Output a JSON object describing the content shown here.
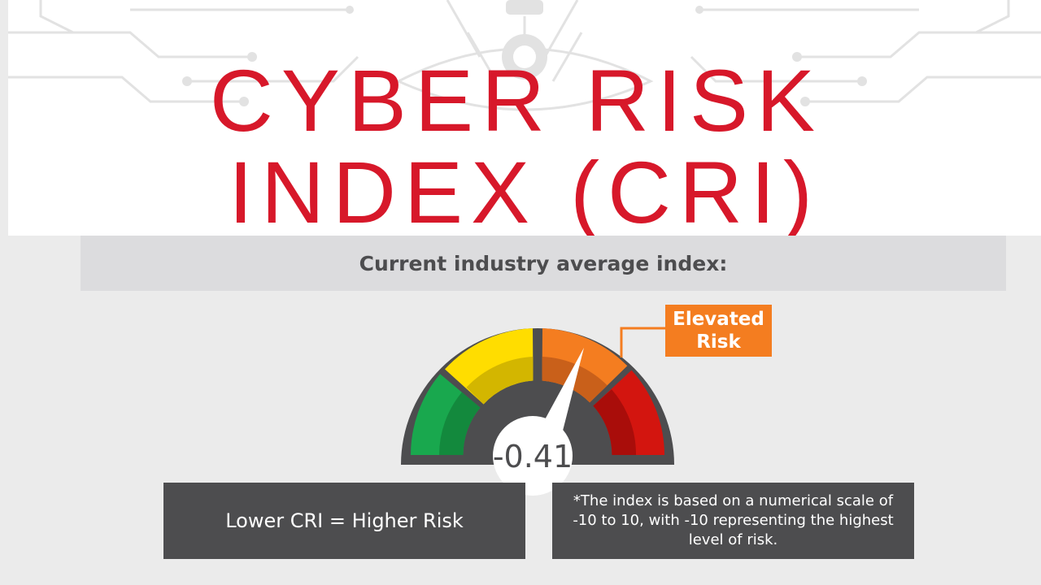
{
  "header": {
    "title_line1": "CYBER RISK",
    "title_line2": "INDEX (CRI)"
  },
  "subtitle": "Current industry average index:",
  "gauge": {
    "value": "-0.41",
    "callout_line1": "Elevated",
    "callout_line2": "Risk",
    "segments": [
      "green",
      "yellow",
      "orange",
      "red"
    ],
    "colors": {
      "green": "#19a84e",
      "yellow": "#ffdd00",
      "orange": "#f47d20",
      "red": "#d3150f",
      "frame": "#4d4d4f",
      "title_red": "#d7182a"
    }
  },
  "info": {
    "left": "Lower CRI = Higher Risk",
    "right": "*The index is based on a numerical scale of -10 to 10, with -10 representing the highest level of risk."
  }
}
